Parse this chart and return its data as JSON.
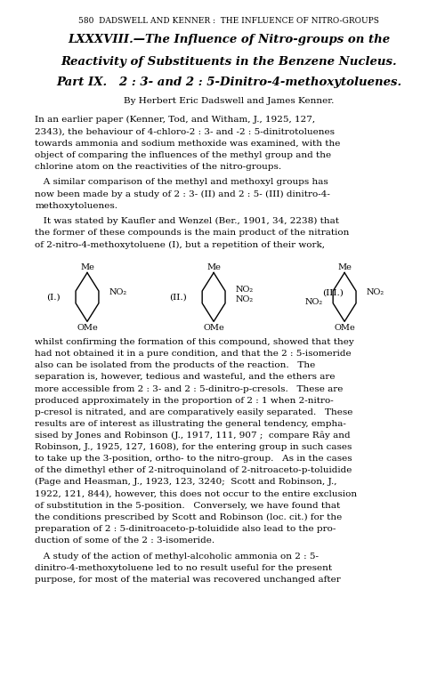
{
  "page_width": 5.0,
  "page_height": 7.62,
  "dpi": 100,
  "background_color": "#ffffff",
  "header_text": "580  DADSWELL AND KENNER :  THE INFLUENCE OF NITRO-GROUPS",
  "title_lines": [
    "LXXXVIII.—The Influence of Nitro-groups on the",
    "Reactivity of Substituents in the Benzene Nucleus.",
    "Part IX.   2 : 3- and 2 : 5-Dinitro-4-methoxytoluenes."
  ],
  "byline": "By Herbert Eric Dadswell and James Kenner.",
  "body_paragraphs": [
    "In an earlier paper (Kenner, Tod, and Witham, J., 1925, 127,\n2343), the behaviour of 4-chloro-2 : 3- and -2 : 5-dinitrotoluenes\ntowards ammonia and sodium methoxide was examined, with the\nobject of comparing the influences of the methyl group and the\nchlorine atom on the reactivities of the nitro-groups.",
    "A similar comparison of the methyl and methoxyl groups has\nnow been made by a study of 2 : 3- (II) and 2 : 5- (III) dinitro-4-\nmethoxytoluenes.",
    "It was stated by Kaufler and Wenzel (Ber., 1901, 34, 2238) that\nthe former of these compounds is the main product of the nitration\nof 2-nitro-4-methoxytoluene (I), but a repetition of their work,",
    "whilst confirming the formation of this compound, showed that they\nhad not obtained it in a pure condition, and that the 2 : 5-isomeride\nalso can be isolated from the products of the reaction.   The\nseparation is, however, tedious and wasteful, and the ethers are\nmore accessible from 2 : 3- and 2 : 5-dinitro-p-cresols.   These are\nproduced approximately in the proportion of 2 : 1 when 2-nitro-\np-cresol is nitrated, and are comparatively easily separated.   These\nresults are of interest as illustrating the general tendency, empha-\nsised by Jones and Robinson (J., 1917, 111, 907 ;  compare Rây and\nRobinson, J., 1925, 127, 1608), for the entering group in such cases\nto take up the 3-position, ortho- to the nitro-group.   As in the cases\nof the dimethyl ether of 2-nitroquinoland of 2-nitroaceto-p-toluidide\n(Page and Heasman, J., 1923, 123, 3240;  Scott and Robinson, J.,\n1922, 121, 844), however, this does not occur to the entire exclusion\nof substitution in the 5-position.   Conversely, we have found that\nthe conditions prescribed by Scott and Robinson (loc. cit.) for the\npreparation of 2 : 5-dinitroaceto-p-toluidide also lead to the pro-\nduction of some of the 2 : 3-isomeride.",
    "A study of the action of methyl-alcoholic ammonia on 2 : 5-\ndinitro-4-methoxytoluene led to no result useful for the present\npurpose, for most of the material was recovered unchanged after"
  ]
}
